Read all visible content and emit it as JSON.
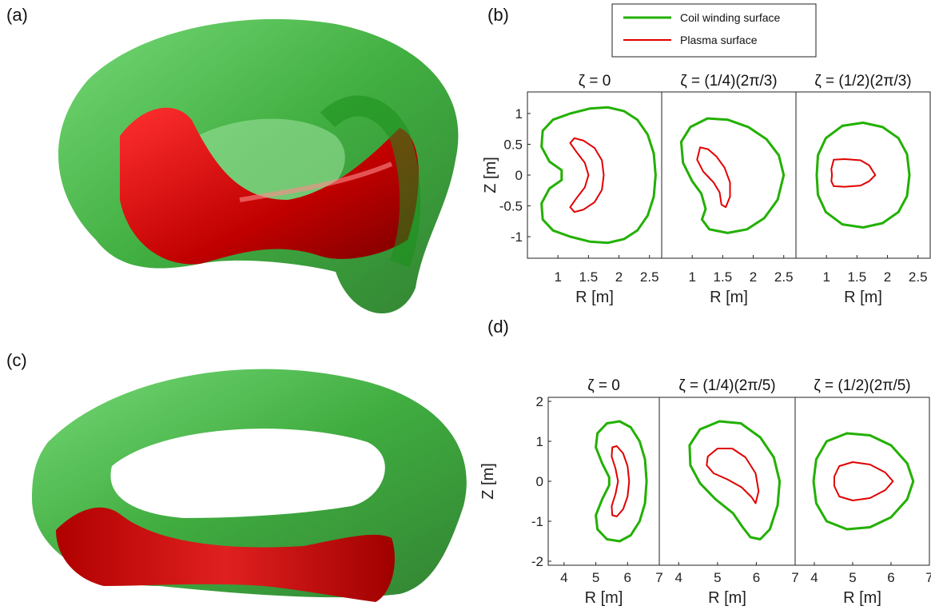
{
  "panel_labels": [
    "(a)",
    "(b)",
    "(c)",
    "(d)"
  ],
  "legend": {
    "entries": [
      {
        "label": "Coil winding surface",
        "color": "#22b000"
      },
      {
        "label": "Plasma surface",
        "color": "#e00000"
      }
    ]
  },
  "colors": {
    "coil_surface": "#22b000",
    "plasma_surface": "#e00000",
    "coil_3d": "#1fa81f",
    "plasma_3d": "#c40000"
  },
  "chart_data": [
    {
      "type": "line",
      "panel": "(b)",
      "xlabel": "R [m]",
      "ylabel": "Z [m]",
      "xlim": [
        0.5,
        2.7
      ],
      "ylim": [
        -1.35,
        1.35
      ],
      "xticks": [
        "1",
        "1.5",
        "2",
        "2.5"
      ],
      "yticks": [
        "1",
        "0.5",
        "0",
        "-0.5",
        "-1"
      ],
      "ytick_values": [
        1,
        0.5,
        0,
        -0.5,
        -1
      ],
      "xtick_values": [
        1,
        1.5,
        2,
        2.5
      ],
      "subplots": [
        {
          "title": "ζ = 0",
          "series": [
            {
              "name": "Coil winding surface",
              "points": [
                [
                  2.6,
                  0
                ],
                [
                  2.57,
                  0.35
                ],
                [
                  2.47,
                  0.66
                ],
                [
                  2.3,
                  0.9
                ],
                [
                  2.08,
                  1.04
                ],
                [
                  1.82,
                  1.1
                ],
                [
                  1.52,
                  1.08
                ],
                [
                  1.2,
                  1.0
                ],
                [
                  0.92,
                  0.9
                ],
                [
                  0.75,
                  0.72
                ],
                [
                  0.73,
                  0.46
                ],
                [
                  0.86,
                  0.22
                ],
                [
                  1.06,
                  0.08
                ],
                [
                  1.06,
                  -0.08
                ],
                [
                  0.86,
                  -0.22
                ],
                [
                  0.73,
                  -0.46
                ],
                [
                  0.75,
                  -0.72
                ],
                [
                  0.92,
                  -0.9
                ],
                [
                  1.2,
                  -1.0
                ],
                [
                  1.52,
                  -1.08
                ],
                [
                  1.82,
                  -1.1
                ],
                [
                  2.08,
                  -1.04
                ],
                [
                  2.3,
                  -0.9
                ],
                [
                  2.47,
                  -0.66
                ],
                [
                  2.57,
                  -0.35
                ],
                [
                  2.6,
                  0
                ]
              ]
            },
            {
              "name": "Plasma surface",
              "points": [
                [
                  1.75,
                  0
                ],
                [
                  1.72,
                  0.24
                ],
                [
                  1.6,
                  0.44
                ],
                [
                  1.42,
                  0.56
                ],
                [
                  1.27,
                  0.6
                ],
                [
                  1.2,
                  0.52
                ],
                [
                  1.3,
                  0.38
                ],
                [
                  1.44,
                  0.2
                ],
                [
                  1.5,
                  0
                ],
                [
                  1.44,
                  -0.2
                ],
                [
                  1.3,
                  -0.38
                ],
                [
                  1.2,
                  -0.52
                ],
                [
                  1.27,
                  -0.6
                ],
                [
                  1.42,
                  -0.56
                ],
                [
                  1.6,
                  -0.44
                ],
                [
                  1.72,
                  -0.24
                ],
                [
                  1.75,
                  0
                ]
              ]
            }
          ]
        },
        {
          "title": "ζ = (1/4)(2π/3)",
          "series": [
            {
              "name": "Coil winding surface",
              "points": [
                [
                  2.5,
                  0
                ],
                [
                  2.42,
                  0.32
                ],
                [
                  2.22,
                  0.58
                ],
                [
                  1.92,
                  0.78
                ],
                [
                  1.58,
                  0.9
                ],
                [
                  1.25,
                  0.92
                ],
                [
                  0.97,
                  0.78
                ],
                [
                  0.82,
                  0.54
                ],
                [
                  0.85,
                  0.2
                ],
                [
                  1.0,
                  -0.1
                ],
                [
                  1.15,
                  -0.3
                ],
                [
                  1.22,
                  -0.55
                ],
                [
                  1.16,
                  -0.72
                ],
                [
                  1.28,
                  -0.88
                ],
                [
                  1.58,
                  -0.94
                ],
                [
                  1.9,
                  -0.88
                ],
                [
                  2.18,
                  -0.7
                ],
                [
                  2.4,
                  -0.4
                ],
                [
                  2.5,
                  0
                ]
              ]
            },
            {
              "name": "Plasma surface",
              "points": [
                [
                  1.13,
                  0.45
                ],
                [
                  1.26,
                  0.42
                ],
                [
                  1.4,
                  0.3
                ],
                [
                  1.53,
                  0.12
                ],
                [
                  1.62,
                  -0.12
                ],
                [
                  1.62,
                  -0.35
                ],
                [
                  1.55,
                  -0.52
                ],
                [
                  1.48,
                  -0.48
                ],
                [
                  1.45,
                  -0.28
                ],
                [
                  1.35,
                  -0.12
                ],
                [
                  1.18,
                  0.06
                ],
                [
                  1.08,
                  0.25
                ],
                [
                  1.13,
                  0.45
                ]
              ]
            }
          ]
        },
        {
          "title": "ζ = (1/2)(2π/3)",
          "series": [
            {
              "name": "Coil winding surface",
              "points": [
                [
                  2.36,
                  0
                ],
                [
                  2.32,
                  0.34
                ],
                [
                  2.18,
                  0.6
                ],
                [
                  1.92,
                  0.78
                ],
                [
                  1.6,
                  0.85
                ],
                [
                  1.26,
                  0.8
                ],
                [
                  0.99,
                  0.6
                ],
                [
                  0.86,
                  0.32
                ],
                [
                  0.84,
                  0
                ],
                [
                  0.86,
                  -0.32
                ],
                [
                  0.99,
                  -0.6
                ],
                [
                  1.26,
                  -0.8
                ],
                [
                  1.6,
                  -0.85
                ],
                [
                  1.92,
                  -0.78
                ],
                [
                  2.18,
                  -0.6
                ],
                [
                  2.32,
                  -0.34
                ],
                [
                  2.36,
                  0
                ]
              ]
            },
            {
              "name": "Plasma surface",
              "points": [
                [
                  1.8,
                  0
                ],
                [
                  1.7,
                  0.16
                ],
                [
                  1.56,
                  0.24
                ],
                [
                  1.3,
                  0.26
                ],
                [
                  1.12,
                  0.25
                ],
                [
                  1.08,
                  0.1
                ],
                [
                  1.09,
                  0
                ],
                [
                  1.08,
                  -0.1
                ],
                [
                  1.12,
                  -0.18
                ],
                [
                  1.3,
                  -0.19
                ],
                [
                  1.56,
                  -0.17
                ],
                [
                  1.7,
                  -0.1
                ],
                [
                  1.8,
                  0
                ]
              ]
            }
          ]
        }
      ]
    },
    {
      "type": "line",
      "panel": "(d)",
      "xlabel": "R [m]",
      "ylabel": "Z [m]",
      "xlim": [
        3.5,
        7.0
      ],
      "ylim": [
        -2.1,
        2.1
      ],
      "xticks": [
        "4",
        "5",
        "6",
        "7"
      ],
      "yticks": [
        "2",
        "1",
        "0",
        "-1",
        "-2"
      ],
      "ytick_values": [
        2,
        1,
        0,
        -1,
        -2
      ],
      "xtick_values": [
        4,
        5,
        6,
        7
      ],
      "subplots": [
        {
          "title": "ζ = 0",
          "series": [
            {
              "name": "Coil winding surface",
              "points": [
                [
                  6.6,
                  0
                ],
                [
                  6.55,
                  0.55
                ],
                [
                  6.38,
                  1.0
                ],
                [
                  6.1,
                  1.35
                ],
                [
                  5.75,
                  1.5
                ],
                [
                  5.35,
                  1.45
                ],
                [
                  5.05,
                  1.2
                ],
                [
                  5.0,
                  0.85
                ],
                [
                  5.2,
                  0.45
                ],
                [
                  5.42,
                  0.1
                ],
                [
                  5.42,
                  -0.1
                ],
                [
                  5.2,
                  -0.45
                ],
                [
                  5.0,
                  -0.85
                ],
                [
                  5.05,
                  -1.2
                ],
                [
                  5.35,
                  -1.45
                ],
                [
                  5.75,
                  -1.5
                ],
                [
                  6.1,
                  -1.35
                ],
                [
                  6.38,
                  -1.0
                ],
                [
                  6.55,
                  -0.55
                ],
                [
                  6.6,
                  0
                ]
              ]
            },
            {
              "name": "Plasma surface",
              "points": [
                [
                  6.05,
                  0
                ],
                [
                  6.0,
                  0.38
                ],
                [
                  5.86,
                  0.7
                ],
                [
                  5.66,
                  0.88
                ],
                [
                  5.52,
                  0.85
                ],
                [
                  5.5,
                  0.62
                ],
                [
                  5.62,
                  0.32
                ],
                [
                  5.7,
                  0
                ],
                [
                  5.62,
                  -0.32
                ],
                [
                  5.5,
                  -0.62
                ],
                [
                  5.52,
                  -0.85
                ],
                [
                  5.66,
                  -0.88
                ],
                [
                  5.86,
                  -0.7
                ],
                [
                  6.0,
                  -0.38
                ],
                [
                  6.05,
                  0
                ]
              ]
            }
          ]
        },
        {
          "title": "ζ = (1/4)(2π/5)",
          "series": [
            {
              "name": "Coil winding surface",
              "points": [
                [
                  6.6,
                  0
                ],
                [
                  6.45,
                  0.6
                ],
                [
                  6.1,
                  1.1
                ],
                [
                  5.6,
                  1.45
                ],
                [
                  5.05,
                  1.5
                ],
                [
                  4.55,
                  1.3
                ],
                [
                  4.28,
                  0.9
                ],
                [
                  4.3,
                  0.4
                ],
                [
                  4.55,
                  -0.05
                ],
                [
                  4.95,
                  -0.45
                ],
                [
                  5.4,
                  -0.8
                ],
                [
                  5.65,
                  -1.15
                ],
                [
                  5.85,
                  -1.4
                ],
                [
                  6.1,
                  -1.45
                ],
                [
                  6.35,
                  -1.2
                ],
                [
                  6.55,
                  -0.6
                ],
                [
                  6.6,
                  0
                ]
              ]
            },
            {
              "name": "Plasma surface",
              "points": [
                [
                  4.75,
                  0.62
                ],
                [
                  5.0,
                  0.82
                ],
                [
                  5.38,
                  0.82
                ],
                [
                  5.72,
                  0.6
                ],
                [
                  5.98,
                  0.2
                ],
                [
                  6.06,
                  -0.25
                ],
                [
                  5.98,
                  -0.55
                ],
                [
                  5.88,
                  -0.4
                ],
                [
                  5.62,
                  -0.15
                ],
                [
                  5.25,
                  0.05
                ],
                [
                  4.9,
                  0.2
                ],
                [
                  4.72,
                  0.4
                ],
                [
                  4.75,
                  0.62
                ]
              ]
            }
          ]
        },
        {
          "title": "ζ = (1/2)(2π/5)",
          "series": [
            {
              "name": "Coil winding surface",
              "points": [
                [
                  6.58,
                  0
                ],
                [
                  6.42,
                  0.45
                ],
                [
                  6.0,
                  0.9
                ],
                [
                  5.45,
                  1.15
                ],
                [
                  4.85,
                  1.2
                ],
                [
                  4.32,
                  1.0
                ],
                [
                  4.05,
                  0.55
                ],
                [
                  3.98,
                  0
                ],
                [
                  4.05,
                  -0.55
                ],
                [
                  4.32,
                  -1.0
                ],
                [
                  4.85,
                  -1.2
                ],
                [
                  5.45,
                  -1.15
                ],
                [
                  6.0,
                  -0.9
                ],
                [
                  6.42,
                  -0.45
                ],
                [
                  6.58,
                  0
                ]
              ]
            },
            {
              "name": "Plasma surface",
              "points": [
                [
                  6.05,
                  0
                ],
                [
                  5.85,
                  0.22
                ],
                [
                  5.45,
                  0.42
                ],
                [
                  5.0,
                  0.48
                ],
                [
                  4.65,
                  0.38
                ],
                [
                  4.52,
                  0.12
                ],
                [
                  4.52,
                  -0.12
                ],
                [
                  4.65,
                  -0.38
                ],
                [
                  5.0,
                  -0.48
                ],
                [
                  5.45,
                  -0.42
                ],
                [
                  5.85,
                  -0.22
                ],
                [
                  6.05,
                  0
                ]
              ]
            }
          ]
        }
      ]
    }
  ]
}
